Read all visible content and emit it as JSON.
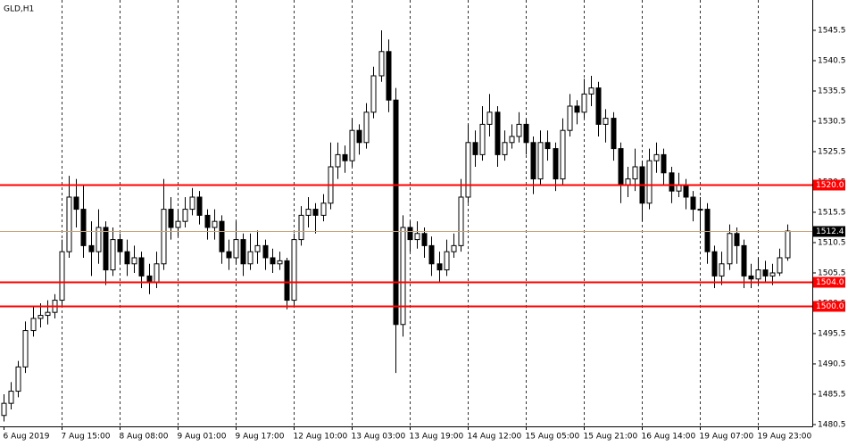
{
  "chart_data": {
    "type": "candlestick",
    "title": "GLD,H1",
    "categories": [
      "6 Aug 2019",
      null,
      null,
      null,
      null,
      null,
      null,
      null,
      "7 Aug 15:00",
      null,
      null,
      null,
      null,
      null,
      null,
      null,
      "8 Aug 08:00",
      null,
      null,
      null,
      null,
      null,
      null,
      null,
      "9 Aug 01:00",
      null,
      null,
      null,
      null,
      null,
      null,
      null,
      "9 Aug 17:00",
      null,
      null,
      null,
      null,
      null,
      null,
      null,
      "12 Aug 10:00",
      null,
      null,
      null,
      null,
      null,
      null,
      null,
      "13 Aug 03:00",
      null,
      null,
      null,
      null,
      null,
      null,
      null,
      "13 Aug 19:00",
      null,
      null,
      null,
      null,
      null,
      null,
      null,
      "14 Aug 12:00",
      null,
      null,
      null,
      null,
      null,
      null,
      null,
      "15 Aug 05:00",
      null,
      null,
      null,
      null,
      null,
      null,
      null,
      "15 Aug 21:00",
      null,
      null,
      null,
      null,
      null,
      null,
      null,
      "16 Aug 14:00",
      null,
      null,
      null,
      null,
      null,
      null,
      null,
      "19 Aug 07:00",
      null,
      null,
      null,
      null,
      null,
      null,
      null,
      "19 Aug 23:00",
      null,
      null,
      null,
      null
    ],
    "open": [
      1482,
      1484,
      1486,
      1490,
      1496,
      1498,
      1498.5,
      1499,
      1501,
      1509,
      1518,
      1516,
      1510,
      1509,
      1513,
      1506,
      1511,
      1509,
      1507,
      1508,
      1505,
      1504,
      1507,
      1516,
      1513,
      1514,
      1516,
      1518,
      1515,
      1513,
      1514,
      1509,
      1508,
      1511,
      1507,
      1509,
      1510,
      1508,
      1507,
      1507.5,
      1501,
      1511,
      1515,
      1516,
      1515,
      1517,
      1523,
      1525,
      1524,
      1529,
      1527,
      1532,
      1538,
      1542,
      1534,
      1497,
      1513,
      1511,
      1512,
      1510,
      1507,
      1506,
      1509,
      1510,
      1518,
      1527,
      1525,
      1530,
      1532,
      1525,
      1527,
      1528,
      1530,
      1527,
      1521,
      1527,
      1526,
      1521,
      1529,
      1533,
      1532,
      1535,
      1536,
      1530,
      1531,
      1526,
      1520,
      1521,
      1523,
      1517,
      1524,
      1525,
      1522,
      1519,
      1520,
      1518,
      1516,
      1516,
      1509,
      1505,
      1507,
      1512,
      1510,
      1505,
      1504.5,
      1506,
      1505,
      1505.5,
      1508
    ],
    "high": [
      1485.5,
      1487.5,
      1491,
      1497.5,
      1500,
      1500.5,
      1501,
      1502,
      1511,
      1521.5,
      1521,
      1520,
      1514,
      1516,
      1514,
      1513,
      1512,
      1511,
      1510,
      1509,
      1507,
      1509,
      1521,
      1518,
      1516,
      1518,
      1519.5,
      1519,
      1516,
      1516,
      1515,
      1511,
      1514,
      1512,
      1512,
      1512.5,
      1511,
      1509.5,
      1509,
      1508,
      1512,
      1516.5,
      1518,
      1517,
      1518.5,
      1527,
      1527,
      1526.5,
      1531,
      1530,
      1533.5,
      1539.5,
      1545.5,
      1544,
      1536,
      1515,
      1514,
      1514,
      1513,
      1511.5,
      1509,
      1511,
      1512,
      1521,
      1530,
      1529,
      1533,
      1535,
      1533,
      1529,
      1530,
      1532,
      1531,
      1528,
      1529,
      1529,
      1527,
      1531,
      1535,
      1534,
      1537.5,
      1538,
      1537,
      1532.5,
      1532,
      1527,
      1523,
      1526,
      1524,
      1526,
      1527,
      1526,
      1523,
      1522,
      1521,
      1519,
      1518,
      1517,
      1510,
      1509,
      1513.5,
      1513,
      1511,
      1507,
      1508,
      1507.5,
      1507,
      1509.5,
      1513.5
    ],
    "low": [
      1481,
      1483,
      1485,
      1489,
      1495,
      1496.5,
      1497,
      1498,
      1500,
      1508,
      1513,
      1508,
      1505,
      1507,
      1503.5,
      1505,
      1507,
      1505,
      1505.5,
      1503,
      1502,
      1503,
      1506,
      1511,
      1511.5,
      1513,
      1515,
      1513.5,
      1511,
      1511,
      1507,
      1506,
      1507,
      1505,
      1506,
      1507,
      1506,
      1505.5,
      1506,
      1499.5,
      1500,
      1510,
      1513,
      1512,
      1514,
      1516,
      1521,
      1522,
      1523,
      1525,
      1526,
      1531,
      1537,
      1532,
      1489,
      1495,
      1509,
      1509.5,
      1508,
      1505,
      1504,
      1505,
      1508,
      1509,
      1517,
      1523,
      1524,
      1528,
      1523,
      1524,
      1526,
      1527,
      1525,
      1518.5,
      1520,
      1524,
      1519,
      1520,
      1528,
      1530,
      1531,
      1533,
      1528,
      1527,
      1524,
      1517,
      1518,
      1519,
      1514,
      1516,
      1522,
      1520,
      1517,
      1518,
      1516,
      1514,
      1512,
      1507,
      1503,
      1503.5,
      1506,
      1507,
      1503,
      1503,
      1503.5,
      1504,
      1503.5,
      1505,
      1507.5
    ],
    "close": [
      1484,
      1486,
      1490,
      1496,
      1498,
      1498.5,
      1499,
      1501,
      1509,
      1518,
      1516,
      1510,
      1509,
      1513,
      1506,
      1511,
      1509,
      1507,
      1508,
      1505,
      1504,
      1507,
      1516,
      1513,
      1514,
      1516,
      1518,
      1515,
      1513,
      1514,
      1509,
      1508,
      1511,
      1507,
      1509,
      1510,
      1508,
      1507,
      1507.5,
      1501,
      1511,
      1515,
      1516,
      1515,
      1517,
      1523,
      1525,
      1524,
      1529,
      1527,
      1532,
      1538,
      1542,
      1534,
      1497,
      1513,
      1511,
      1512,
      1510,
      1507,
      1506,
      1509,
      1510,
      1518,
      1527,
      1525,
      1530,
      1532,
      1525,
      1527,
      1528,
      1530,
      1527,
      1521,
      1527,
      1526,
      1521,
      1529,
      1533,
      1532,
      1535,
      1536,
      1530,
      1531,
      1526,
      1520,
      1521,
      1523,
      1517,
      1524,
      1525,
      1522,
      1519,
      1520,
      1518,
      1516,
      1516,
      1509,
      1505,
      1507,
      1512,
      1510,
      1505,
      1504.5,
      1506,
      1505,
      1505.5,
      1508,
      1512.4
    ],
    "ylim": [
      1480.2,
      1550.5
    ],
    "yticks": [
      1480.5,
      1485.5,
      1490.5,
      1495.5,
      1500.5,
      1505.5,
      1510.5,
      1515.5,
      1520.5,
      1525.5,
      1530.5,
      1535.5,
      1540.5,
      1545.5
    ],
    "grid": true,
    "up_color": "#ffffff",
    "down_color": "#000000",
    "levels": [
      {
        "value": 1520,
        "label": "1520.0",
        "color": "#ff0000"
      },
      {
        "value": 1504,
        "label": "1504.0",
        "color": "#ff0000"
      },
      {
        "value": 1500,
        "label": "1500.0",
        "color": "#ff0000"
      }
    ],
    "last": {
      "value": 1512.4,
      "label": "1512.4",
      "color": "#c8a27c"
    }
  }
}
